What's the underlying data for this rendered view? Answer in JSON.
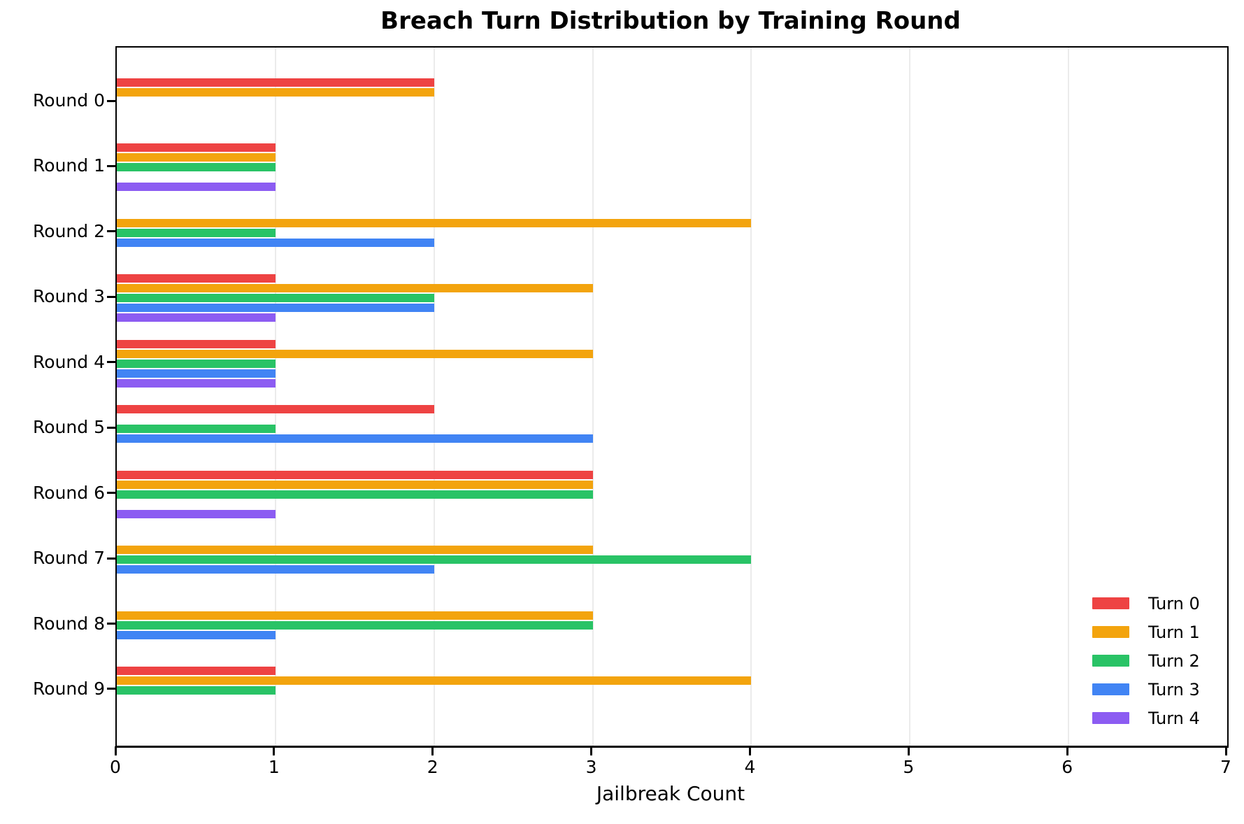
{
  "title": "Breach Turn Distribution by Training Round",
  "chart_data": {
    "type": "bar",
    "orientation": "horizontal",
    "title": "Breach Turn Distribution by Training Round",
    "xlabel": "Jailbreak Count",
    "ylabel": "",
    "xlim": [
      0,
      7
    ],
    "xticks": [
      0,
      1,
      2,
      3,
      4,
      5,
      6,
      7
    ],
    "grid": "vertical-light",
    "legend_position": "lower right",
    "categories": [
      "Round 0",
      "Round 1",
      "Round 2",
      "Round 3",
      "Round 4",
      "Round 5",
      "Round 6",
      "Round 7",
      "Round 8",
      "Round 9"
    ],
    "series": [
      {
        "name": "Turn 0",
        "color": "#EE4343",
        "values": [
          2,
          1,
          0,
          1,
          1,
          2,
          3,
          0,
          0,
          1
        ]
      },
      {
        "name": "Turn 1",
        "color": "#F3A40E",
        "values": [
          2,
          1,
          4,
          3,
          3,
          0,
          3,
          3,
          3,
          4
        ]
      },
      {
        "name": "Turn 2",
        "color": "#29C366",
        "values": [
          0,
          1,
          1,
          2,
          1,
          1,
          3,
          4,
          3,
          1
        ]
      },
      {
        "name": "Turn 3",
        "color": "#4184F4",
        "values": [
          0,
          0,
          2,
          2,
          1,
          3,
          0,
          2,
          1,
          0
        ]
      },
      {
        "name": "Turn 4",
        "color": "#8C5CF2",
        "values": [
          0,
          1,
          0,
          1,
          1,
          0,
          1,
          0,
          0,
          0
        ]
      }
    ]
  }
}
